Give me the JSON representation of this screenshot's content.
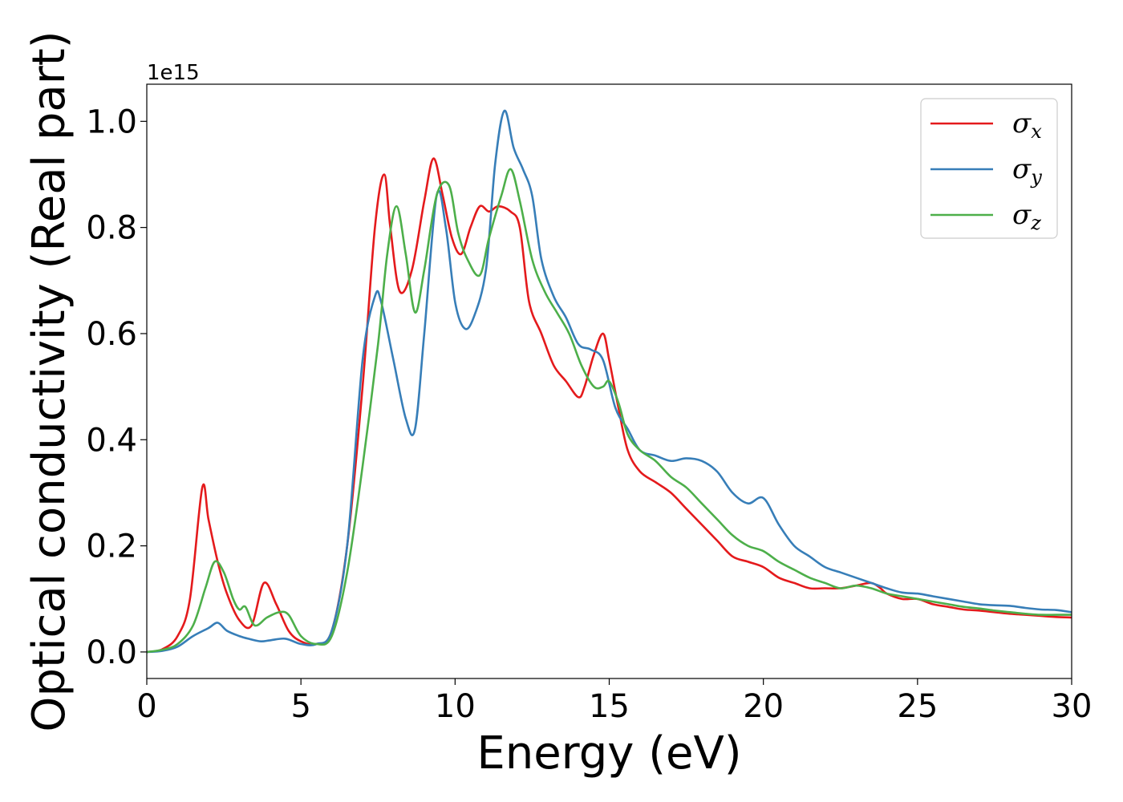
{
  "chart_data": {
    "type": "line",
    "xlabel": "Energy (eV)",
    "ylabel": "Optical conductivity (Real part)",
    "y_offset_label": "1e15",
    "xlim": [
      0,
      30
    ],
    "ylim": [
      -0.05,
      1.07
    ],
    "xticks": [
      0,
      5,
      10,
      15,
      20,
      25,
      30
    ],
    "xtick_labels": [
      "0",
      "5",
      "10",
      "15",
      "20",
      "25",
      "30"
    ],
    "yticks": [
      0.0,
      0.2,
      0.4,
      0.6,
      0.8,
      1.0
    ],
    "ytick_labels": [
      "0.0",
      "0.2",
      "0.4",
      "0.6",
      "0.8",
      "1.0"
    ],
    "grid": false,
    "legend_position": "top-right",
    "series": [
      {
        "name": "σx",
        "symbol": "σ",
        "subscript": "x",
        "color": "#e41a1c",
        "x": [
          0,
          0.5,
          1.0,
          1.4,
          1.8,
          2.0,
          2.3,
          2.6,
          3.0,
          3.4,
          3.8,
          4.2,
          4.6,
          5.0,
          5.5,
          6.0,
          6.5,
          7.0,
          7.4,
          7.7,
          7.9,
          8.2,
          8.6,
          9.0,
          9.3,
          9.6,
          9.9,
          10.2,
          10.5,
          10.8,
          11.1,
          11.4,
          11.8,
          12.1,
          12.4,
          12.8,
          13.2,
          13.6,
          14.0,
          14.2,
          14.5,
          14.8,
          15.0,
          15.3,
          15.6,
          16.0,
          16.5,
          17.0,
          17.5,
          18.0,
          18.5,
          19.0,
          19.5,
          20.0,
          20.5,
          21.0,
          21.5,
          22.0,
          22.5,
          23.0,
          23.5,
          23.8,
          24.0,
          24.5,
          25.0,
          25.5,
          26.0,
          26.5,
          27.0,
          27.5,
          28.0,
          28.5,
          29.0,
          29.5,
          30.0
        ],
        "y": [
          0.0,
          0.005,
          0.03,
          0.1,
          0.31,
          0.25,
          0.17,
          0.11,
          0.06,
          0.05,
          0.13,
          0.09,
          0.04,
          0.02,
          0.015,
          0.04,
          0.2,
          0.5,
          0.8,
          0.9,
          0.8,
          0.68,
          0.72,
          0.85,
          0.93,
          0.86,
          0.78,
          0.75,
          0.8,
          0.84,
          0.83,
          0.84,
          0.83,
          0.8,
          0.66,
          0.6,
          0.54,
          0.51,
          0.48,
          0.5,
          0.56,
          0.6,
          0.55,
          0.46,
          0.38,
          0.34,
          0.32,
          0.3,
          0.27,
          0.24,
          0.21,
          0.18,
          0.17,
          0.16,
          0.14,
          0.13,
          0.12,
          0.12,
          0.12,
          0.125,
          0.13,
          0.12,
          0.11,
          0.1,
          0.1,
          0.09,
          0.085,
          0.08,
          0.078,
          0.075,
          0.072,
          0.07,
          0.068,
          0.066,
          0.065
        ]
      },
      {
        "name": "σy",
        "symbol": "σ",
        "subscript": "y",
        "color": "#377eb8",
        "x": [
          0,
          0.5,
          1.0,
          1.5,
          2.0,
          2.3,
          2.6,
          3.0,
          3.3,
          3.7,
          4.0,
          4.5,
          5.0,
          5.5,
          6.0,
          6.5,
          7.0,
          7.4,
          7.6,
          8.0,
          8.4,
          8.7,
          9.0,
          9.4,
          9.7,
          10.0,
          10.3,
          10.6,
          11.0,
          11.3,
          11.6,
          11.9,
          12.2,
          12.5,
          12.8,
          13.2,
          13.6,
          14.0,
          14.4,
          14.8,
          15.2,
          15.6,
          16.0,
          16.5,
          17.0,
          17.5,
          18.0,
          18.5,
          19.0,
          19.5,
          20.0,
          20.5,
          21.0,
          21.5,
          22.0,
          22.5,
          23.0,
          23.5,
          24.0,
          24.5,
          25.0,
          25.5,
          26.0,
          26.5,
          27.0,
          27.5,
          28.0,
          28.5,
          29.0,
          29.5,
          30.0
        ],
        "y": [
          0.0,
          0.002,
          0.01,
          0.03,
          0.045,
          0.055,
          0.04,
          0.03,
          0.025,
          0.02,
          0.022,
          0.025,
          0.015,
          0.015,
          0.04,
          0.2,
          0.55,
          0.67,
          0.66,
          0.55,
          0.44,
          0.42,
          0.6,
          0.86,
          0.8,
          0.66,
          0.61,
          0.63,
          0.72,
          0.92,
          1.02,
          0.95,
          0.91,
          0.86,
          0.74,
          0.67,
          0.63,
          0.58,
          0.57,
          0.55,
          0.46,
          0.42,
          0.38,
          0.37,
          0.36,
          0.365,
          0.36,
          0.34,
          0.3,
          0.28,
          0.29,
          0.24,
          0.2,
          0.18,
          0.16,
          0.15,
          0.14,
          0.13,
          0.12,
          0.112,
          0.11,
          0.105,
          0.1,
          0.095,
          0.09,
          0.088,
          0.087,
          0.083,
          0.08,
          0.079,
          0.075
        ]
      },
      {
        "name": "σz",
        "symbol": "σ",
        "subscript": "z",
        "color": "#4daf4a",
        "x": [
          0,
          0.5,
          1.0,
          1.5,
          1.9,
          2.2,
          2.5,
          2.8,
          3.0,
          3.2,
          3.5,
          3.9,
          4.3,
          4.6,
          5.0,
          5.5,
          6.0,
          6.5,
          7.0,
          7.5,
          7.8,
          8.1,
          8.4,
          8.7,
          9.0,
          9.4,
          9.8,
          10.1,
          10.4,
          10.8,
          11.1,
          11.5,
          11.8,
          12.1,
          12.5,
          12.9,
          13.3,
          13.7,
          14.1,
          14.5,
          14.8,
          15.0,
          15.3,
          15.6,
          16.0,
          16.5,
          17.0,
          17.5,
          18.0,
          18.5,
          19.0,
          19.5,
          20.0,
          20.5,
          21.0,
          21.5,
          22.0,
          22.5,
          23.0,
          23.5,
          24.0,
          24.5,
          25.0,
          25.5,
          26.0,
          26.5,
          27.0,
          27.5,
          28.0,
          28.5,
          29.0,
          29.5,
          30.0
        ],
        "y": [
          0.0,
          0.004,
          0.015,
          0.05,
          0.12,
          0.17,
          0.15,
          0.1,
          0.08,
          0.085,
          0.05,
          0.065,
          0.075,
          0.07,
          0.03,
          0.015,
          0.03,
          0.15,
          0.35,
          0.58,
          0.75,
          0.84,
          0.75,
          0.64,
          0.72,
          0.86,
          0.88,
          0.79,
          0.74,
          0.71,
          0.78,
          0.86,
          0.91,
          0.85,
          0.74,
          0.68,
          0.64,
          0.6,
          0.54,
          0.5,
          0.5,
          0.51,
          0.47,
          0.41,
          0.38,
          0.36,
          0.33,
          0.31,
          0.28,
          0.25,
          0.22,
          0.2,
          0.19,
          0.17,
          0.155,
          0.14,
          0.13,
          0.12,
          0.125,
          0.12,
          0.11,
          0.105,
          0.1,
          0.095,
          0.09,
          0.085,
          0.082,
          0.078,
          0.075,
          0.072,
          0.07,
          0.07,
          0.07
        ]
      }
    ]
  }
}
